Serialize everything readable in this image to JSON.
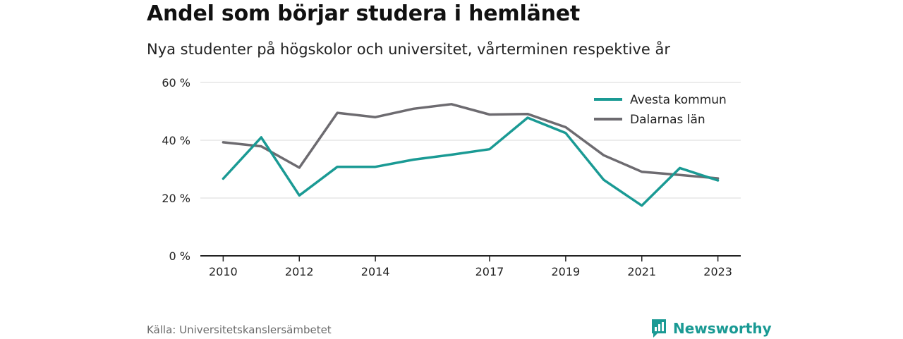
{
  "title": "Andel som börjar studera i hemlänet",
  "subtitle": "Nya studenter på högskolor och universitet, vårterminen respektive år",
  "source": "Källa: Universitetskanslersämbetet",
  "brand": {
    "name": "Newsworthy",
    "icon": "bar-chart-bubble-icon",
    "color": "#1a9a94"
  },
  "chart_data": {
    "type": "line",
    "x_ticks": [
      "2010",
      "2012",
      "2014",
      "2017",
      "2019",
      "2021",
      "2023"
    ],
    "x": [
      2010,
      2011,
      2012,
      2013,
      2014,
      2015,
      2016,
      2017,
      2018,
      2019,
      2020,
      2021,
      2022,
      2023
    ],
    "xlim": [
      2009.4,
      2023.6
    ],
    "ylim": [
      0,
      60
    ],
    "y_ticks": [
      "0 %",
      "20 %",
      "40 %",
      "60 %"
    ],
    "y_tick_values": [
      0,
      20,
      40,
      60
    ],
    "grid": true,
    "legend_position": "top-right",
    "series": [
      {
        "name": "Avesta kommun",
        "color": "#1a9a94",
        "values": [
          26.7,
          41.0,
          20.9,
          30.8,
          30.8,
          33.3,
          35.0,
          36.9,
          47.8,
          42.5,
          26.3,
          17.4,
          30.4,
          26.1
        ]
      },
      {
        "name": "Dalarnas län",
        "color": "#6d6b70",
        "values": [
          39.3,
          37.9,
          30.5,
          49.5,
          48.0,
          50.9,
          52.5,
          48.9,
          49.1,
          44.5,
          34.8,
          29.1,
          28.0,
          26.8
        ]
      }
    ]
  }
}
